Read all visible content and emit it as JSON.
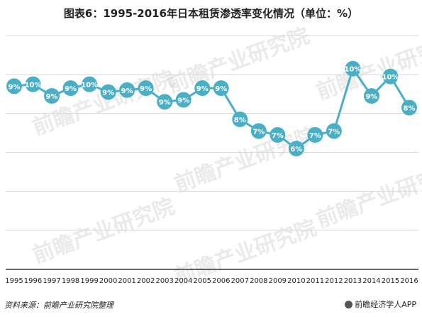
{
  "title": "图表6：1995-2016年日本租赁渗透率变化情况（单位：%）",
  "source": "资料来源：前瞻产业研究院整理",
  "brand": "前瞻经济学人APP",
  "watermark": "前瞻产业研究院",
  "colors": {
    "line": "#4aafc4",
    "marker": "#4aafc4",
    "label": "#ffffff",
    "grid": "#d9d9d9",
    "axis": "#333333"
  },
  "chart_data": {
    "type": "line",
    "title": "图表6：1995-2016年日本租赁渗透率变化情况（单位：%）",
    "xlabel": "",
    "ylabel": "",
    "grid": true,
    "categories": [
      "1995",
      "1996",
      "1997",
      "1998",
      "1999",
      "2000",
      "2001",
      "2002",
      "2003",
      "2004",
      "2005",
      "2006",
      "2007",
      "2008",
      "2009",
      "2010",
      "2011",
      "2012",
      "2013",
      "2014",
      "2015",
      "2016"
    ],
    "values": [
      9.4,
      9.5,
      8.9,
      9.3,
      9.5,
      9.1,
      9.2,
      9.3,
      8.6,
      8.7,
      9.3,
      9.3,
      7.7,
      7.1,
      6.9,
      6.2,
      6.9,
      7.1,
      10.3,
      8.9,
      9.9,
      8.3
    ],
    "labels": [
      "9%",
      "10%",
      "9%",
      "9%",
      "10%",
      "9%",
      "9%",
      "9%",
      "9%",
      "9%",
      "9%",
      "9%",
      "8%",
      "7%",
      "7%",
      "6%",
      "7%",
      "7%",
      "10%",
      "9%",
      "10%",
      "8%"
    ],
    "ylim": [
      0,
      12
    ]
  }
}
